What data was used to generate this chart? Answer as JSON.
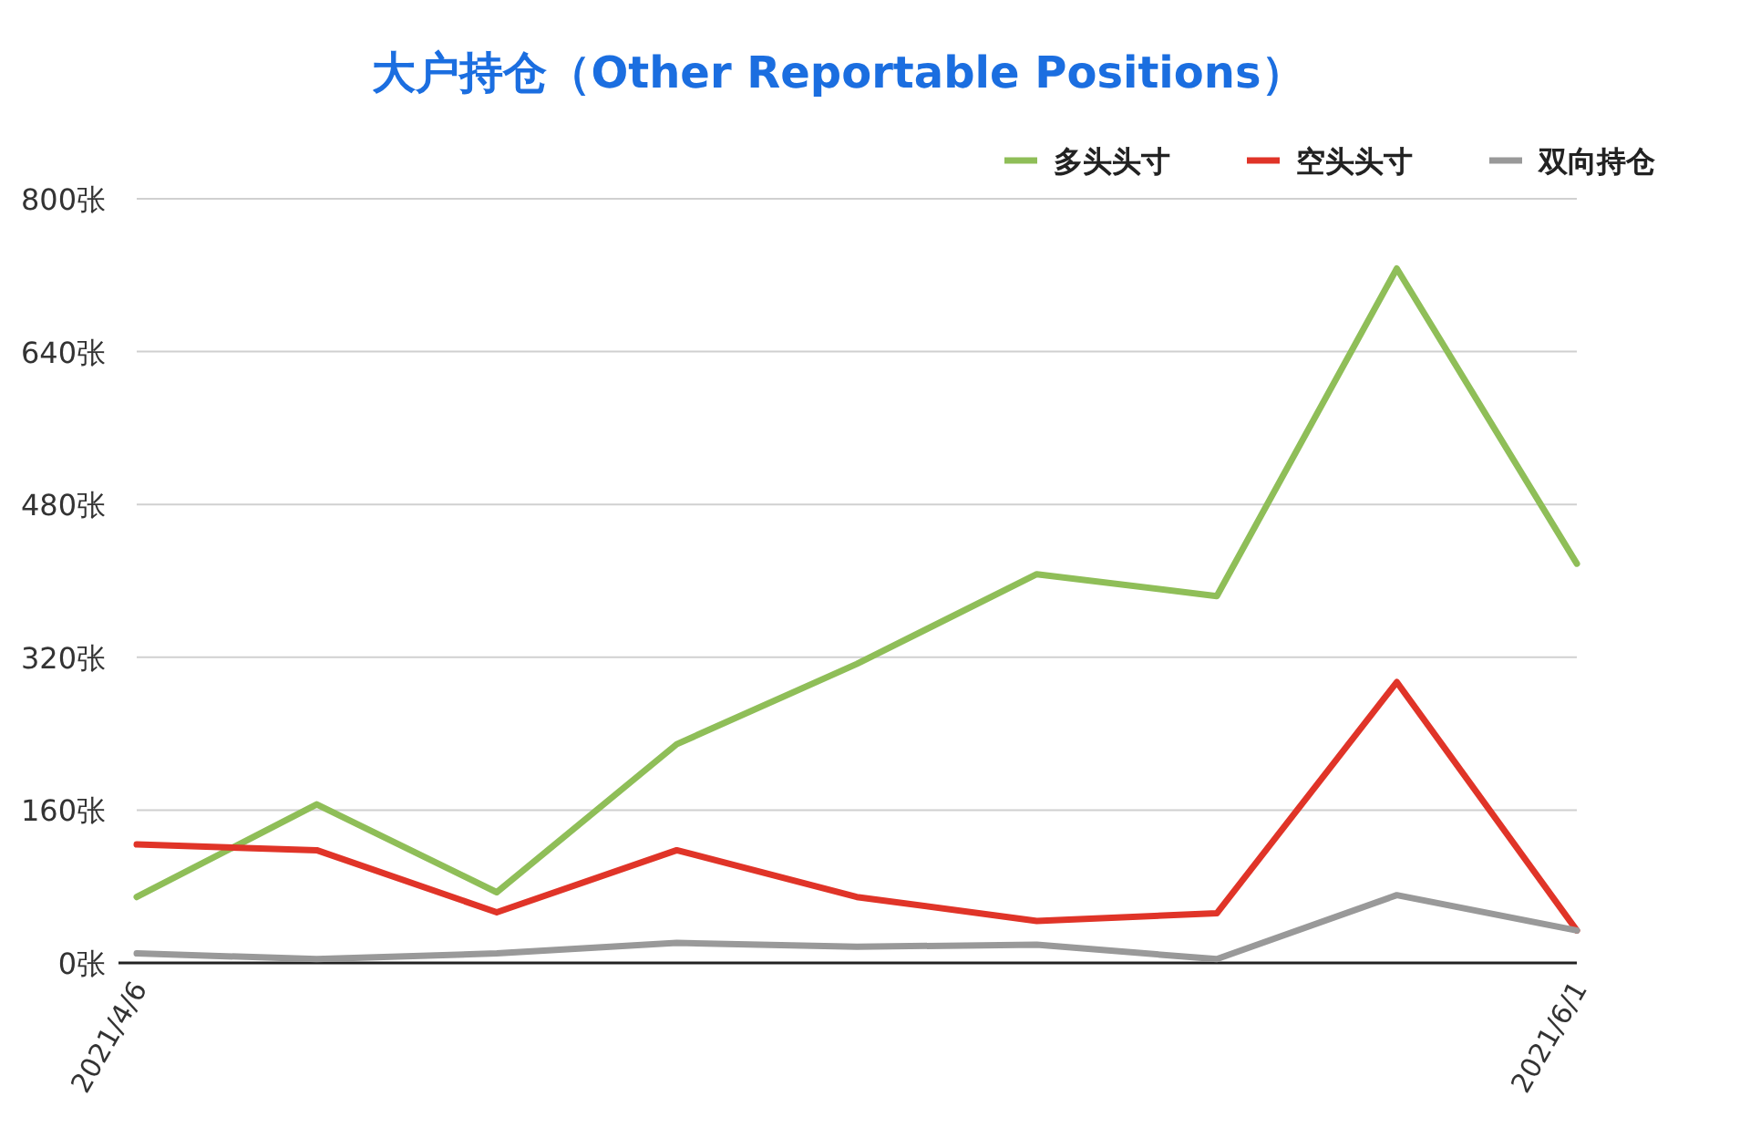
{
  "chart_data": {
    "type": "line",
    "title": "大户持仓（Other Reportable Positions）",
    "categories": [
      "2021/4/6",
      null,
      null,
      null,
      null,
      null,
      null,
      null,
      "2021/6/1"
    ],
    "series": [
      {
        "name": "多头头寸",
        "color": "#8fbe58",
        "values": [
          69,
          166,
          74,
          229,
          313,
          407,
          384,
          727,
          418
        ]
      },
      {
        "name": "空头头寸",
        "color": "#e03428",
        "values": [
          124,
          118,
          53,
          118,
          69,
          44,
          52,
          294,
          34
        ]
      },
      {
        "name": "双向持仓",
        "color": "#999999",
        "values": [
          10,
          4,
          10,
          21,
          17,
          19,
          4,
          71,
          34
        ]
      }
    ],
    "ylim": [
      0,
      800
    ],
    "yticks": [
      {
        "value": 0,
        "label": "0张"
      },
      {
        "value": 160,
        "label": "160张"
      },
      {
        "value": 320,
        "label": "320张"
      },
      {
        "value": 480,
        "label": "480张"
      },
      {
        "value": 640,
        "label": "640张"
      },
      {
        "value": 800,
        "label": "800张"
      }
    ],
    "grid": "y",
    "legend": "top right",
    "line_style": "solid"
  }
}
